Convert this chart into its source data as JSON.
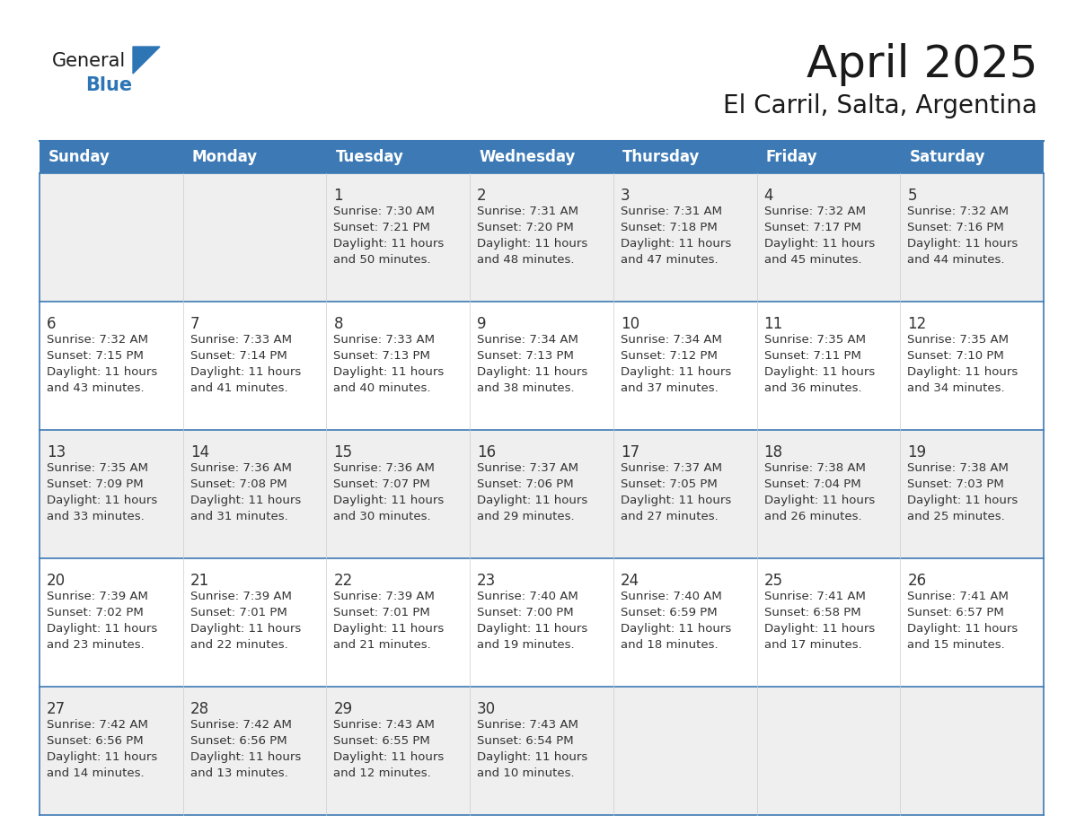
{
  "title": "April 2025",
  "subtitle": "El Carril, Salta, Argentina",
  "header_bg": "#3D7AB5",
  "header_text_color": "#FFFFFF",
  "cell_bg_light": "#EFEFEF",
  "cell_bg_white": "#FFFFFF",
  "grid_line_color": "#3D7AB5",
  "day_headers": [
    "Sunday",
    "Monday",
    "Tuesday",
    "Wednesday",
    "Thursday",
    "Friday",
    "Saturday"
  ],
  "title_color": "#1a1a1a",
  "subtitle_color": "#1a1a1a",
  "days": [
    {
      "day": 1,
      "col": 2,
      "row": 0,
      "sunrise": "7:30 AM",
      "sunset": "7:21 PM",
      "daylight_l1": "Daylight: 11 hours",
      "daylight_l2": "and 50 minutes."
    },
    {
      "day": 2,
      "col": 3,
      "row": 0,
      "sunrise": "7:31 AM",
      "sunset": "7:20 PM",
      "daylight_l1": "Daylight: 11 hours",
      "daylight_l2": "and 48 minutes."
    },
    {
      "day": 3,
      "col": 4,
      "row": 0,
      "sunrise": "7:31 AM",
      "sunset": "7:18 PM",
      "daylight_l1": "Daylight: 11 hours",
      "daylight_l2": "and 47 minutes."
    },
    {
      "day": 4,
      "col": 5,
      "row": 0,
      "sunrise": "7:32 AM",
      "sunset": "7:17 PM",
      "daylight_l1": "Daylight: 11 hours",
      "daylight_l2": "and 45 minutes."
    },
    {
      "day": 5,
      "col": 6,
      "row": 0,
      "sunrise": "7:32 AM",
      "sunset": "7:16 PM",
      "daylight_l1": "Daylight: 11 hours",
      "daylight_l2": "and 44 minutes."
    },
    {
      "day": 6,
      "col": 0,
      "row": 1,
      "sunrise": "7:32 AM",
      "sunset": "7:15 PM",
      "daylight_l1": "Daylight: 11 hours",
      "daylight_l2": "and 43 minutes."
    },
    {
      "day": 7,
      "col": 1,
      "row": 1,
      "sunrise": "7:33 AM",
      "sunset": "7:14 PM",
      "daylight_l1": "Daylight: 11 hours",
      "daylight_l2": "and 41 minutes."
    },
    {
      "day": 8,
      "col": 2,
      "row": 1,
      "sunrise": "7:33 AM",
      "sunset": "7:13 PM",
      "daylight_l1": "Daylight: 11 hours",
      "daylight_l2": "and 40 minutes."
    },
    {
      "day": 9,
      "col": 3,
      "row": 1,
      "sunrise": "7:34 AM",
      "sunset": "7:13 PM",
      "daylight_l1": "Daylight: 11 hours",
      "daylight_l2": "and 38 minutes."
    },
    {
      "day": 10,
      "col": 4,
      "row": 1,
      "sunrise": "7:34 AM",
      "sunset": "7:12 PM",
      "daylight_l1": "Daylight: 11 hours",
      "daylight_l2": "and 37 minutes."
    },
    {
      "day": 11,
      "col": 5,
      "row": 1,
      "sunrise": "7:35 AM",
      "sunset": "7:11 PM",
      "daylight_l1": "Daylight: 11 hours",
      "daylight_l2": "and 36 minutes."
    },
    {
      "day": 12,
      "col": 6,
      "row": 1,
      "sunrise": "7:35 AM",
      "sunset": "7:10 PM",
      "daylight_l1": "Daylight: 11 hours",
      "daylight_l2": "and 34 minutes."
    },
    {
      "day": 13,
      "col": 0,
      "row": 2,
      "sunrise": "7:35 AM",
      "sunset": "7:09 PM",
      "daylight_l1": "Daylight: 11 hours",
      "daylight_l2": "and 33 minutes."
    },
    {
      "day": 14,
      "col": 1,
      "row": 2,
      "sunrise": "7:36 AM",
      "sunset": "7:08 PM",
      "daylight_l1": "Daylight: 11 hours",
      "daylight_l2": "and 31 minutes."
    },
    {
      "day": 15,
      "col": 2,
      "row": 2,
      "sunrise": "7:36 AM",
      "sunset": "7:07 PM",
      "daylight_l1": "Daylight: 11 hours",
      "daylight_l2": "and 30 minutes."
    },
    {
      "day": 16,
      "col": 3,
      "row": 2,
      "sunrise": "7:37 AM",
      "sunset": "7:06 PM",
      "daylight_l1": "Daylight: 11 hours",
      "daylight_l2": "and 29 minutes."
    },
    {
      "day": 17,
      "col": 4,
      "row": 2,
      "sunrise": "7:37 AM",
      "sunset": "7:05 PM",
      "daylight_l1": "Daylight: 11 hours",
      "daylight_l2": "and 27 minutes."
    },
    {
      "day": 18,
      "col": 5,
      "row": 2,
      "sunrise": "7:38 AM",
      "sunset": "7:04 PM",
      "daylight_l1": "Daylight: 11 hours",
      "daylight_l2": "and 26 minutes."
    },
    {
      "day": 19,
      "col": 6,
      "row": 2,
      "sunrise": "7:38 AM",
      "sunset": "7:03 PM",
      "daylight_l1": "Daylight: 11 hours",
      "daylight_l2": "and 25 minutes."
    },
    {
      "day": 20,
      "col": 0,
      "row": 3,
      "sunrise": "7:39 AM",
      "sunset": "7:02 PM",
      "daylight_l1": "Daylight: 11 hours",
      "daylight_l2": "and 23 minutes."
    },
    {
      "day": 21,
      "col": 1,
      "row": 3,
      "sunrise": "7:39 AM",
      "sunset": "7:01 PM",
      "daylight_l1": "Daylight: 11 hours",
      "daylight_l2": "and 22 minutes."
    },
    {
      "day": 22,
      "col": 2,
      "row": 3,
      "sunrise": "7:39 AM",
      "sunset": "7:01 PM",
      "daylight_l1": "Daylight: 11 hours",
      "daylight_l2": "and 21 minutes."
    },
    {
      "day": 23,
      "col": 3,
      "row": 3,
      "sunrise": "7:40 AM",
      "sunset": "7:00 PM",
      "daylight_l1": "Daylight: 11 hours",
      "daylight_l2": "and 19 minutes."
    },
    {
      "day": 24,
      "col": 4,
      "row": 3,
      "sunrise": "7:40 AM",
      "sunset": "6:59 PM",
      "daylight_l1": "Daylight: 11 hours",
      "daylight_l2": "and 18 minutes."
    },
    {
      "day": 25,
      "col": 5,
      "row": 3,
      "sunrise": "7:41 AM",
      "sunset": "6:58 PM",
      "daylight_l1": "Daylight: 11 hours",
      "daylight_l2": "and 17 minutes."
    },
    {
      "day": 26,
      "col": 6,
      "row": 3,
      "sunrise": "7:41 AM",
      "sunset": "6:57 PM",
      "daylight_l1": "Daylight: 11 hours",
      "daylight_l2": "and 15 minutes."
    },
    {
      "day": 27,
      "col": 0,
      "row": 4,
      "sunrise": "7:42 AM",
      "sunset": "6:56 PM",
      "daylight_l1": "Daylight: 11 hours",
      "daylight_l2": "and 14 minutes."
    },
    {
      "day": 28,
      "col": 1,
      "row": 4,
      "sunrise": "7:42 AM",
      "sunset": "6:56 PM",
      "daylight_l1": "Daylight: 11 hours",
      "daylight_l2": "and 13 minutes."
    },
    {
      "day": 29,
      "col": 2,
      "row": 4,
      "sunrise": "7:43 AM",
      "sunset": "6:55 PM",
      "daylight_l1": "Daylight: 11 hours",
      "daylight_l2": "and 12 minutes."
    },
    {
      "day": 30,
      "col": 3,
      "row": 4,
      "sunrise": "7:43 AM",
      "sunset": "6:54 PM",
      "daylight_l1": "Daylight: 11 hours",
      "daylight_l2": "and 10 minutes."
    }
  ],
  "num_rows": 5,
  "num_cols": 7,
  "logo_general_color": "#1a1a1a",
  "logo_blue_color": "#2E75B6",
  "logo_triangle_color": "#2E75B6"
}
